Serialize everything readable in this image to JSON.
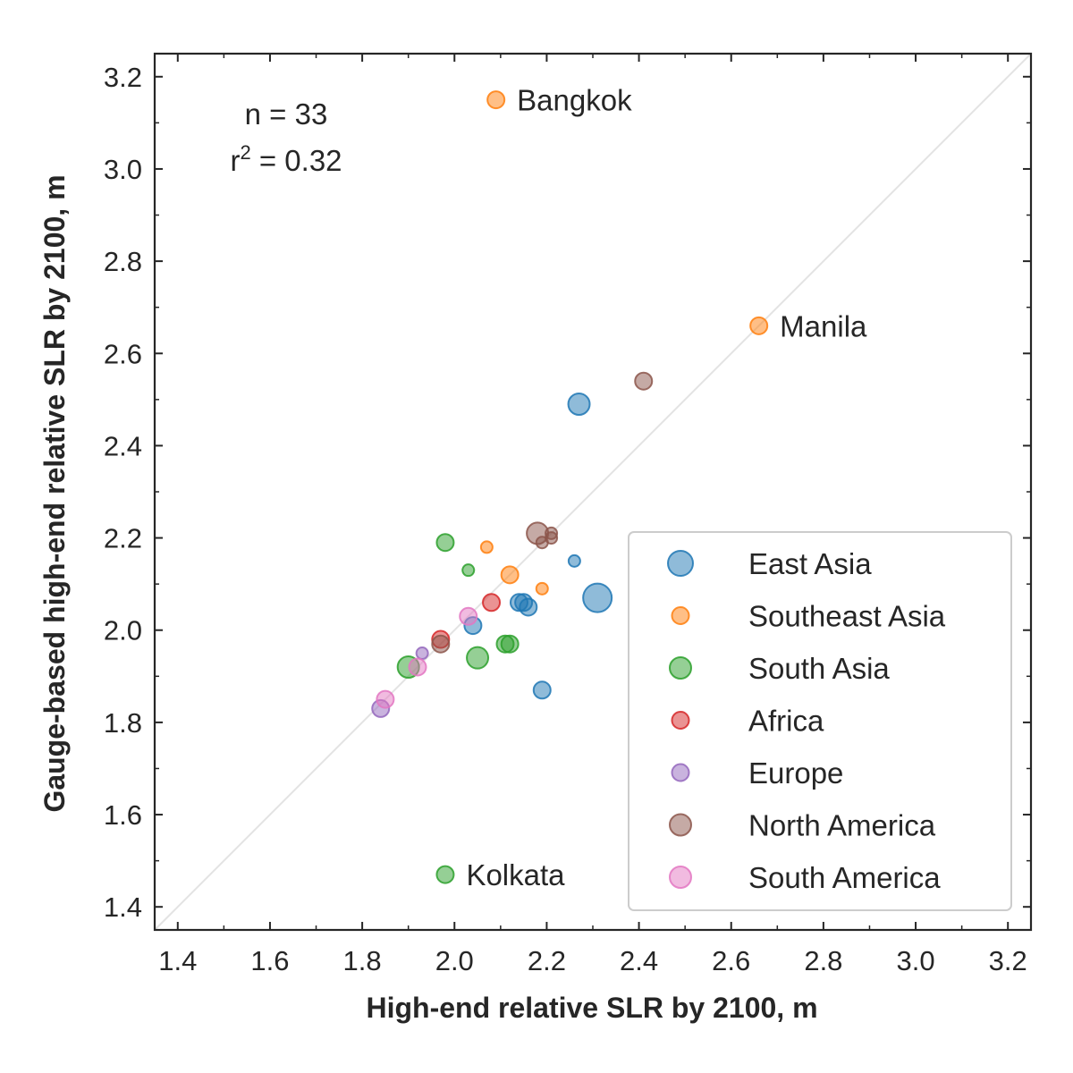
{
  "chart_data": {
    "type": "scatter",
    "xlabel": "High-end relative SLR by 2100, m",
    "ylabel": "Gauge-based high-end relative SLR by 2100, m",
    "xlim": [
      1.35,
      3.25
    ],
    "ylim": [
      1.35,
      3.25
    ],
    "xticks": [
      "1.4",
      "1.6",
      "1.8",
      "2.0",
      "2.2",
      "2.4",
      "2.6",
      "2.8",
      "3.0",
      "3.2"
    ],
    "yticks": [
      "1.4",
      "1.6",
      "1.8",
      "2.0",
      "2.2",
      "2.4",
      "2.6",
      "2.8",
      "3.0",
      "3.2"
    ],
    "reference_line": "y = x",
    "grid": false,
    "legend_position": "lower right",
    "stats": {
      "n": "n = 33",
      "r2_prefix": "r",
      "r2_sup": "2",
      "r2_value": " = 0.32"
    },
    "series": [
      {
        "name": "East Asia",
        "color": "#1f77b4",
        "points": [
          {
            "x": 2.27,
            "y": 2.49,
            "s": 2
          },
          {
            "x": 2.31,
            "y": 2.07,
            "s": 3
          },
          {
            "x": 2.26,
            "y": 2.15,
            "s": 0
          },
          {
            "x": 2.14,
            "y": 2.06,
            "s": 1
          },
          {
            "x": 2.15,
            "y": 2.06,
            "s": 1
          },
          {
            "x": 2.16,
            "y": 2.05,
            "s": 1
          },
          {
            "x": 2.04,
            "y": 2.01,
            "s": 1
          },
          {
            "x": 2.19,
            "y": 1.87,
            "s": 1
          }
        ]
      },
      {
        "name": "Southeast Asia",
        "color": "#ff7f0e",
        "points": [
          {
            "x": 2.09,
            "y": 3.15,
            "s": 1,
            "label": "Bangkok"
          },
          {
            "x": 2.66,
            "y": 2.66,
            "s": 1,
            "label": "Manila"
          },
          {
            "x": 2.07,
            "y": 2.18,
            "s": 0
          },
          {
            "x": 2.12,
            "y": 2.12,
            "s": 1
          },
          {
            "x": 2.19,
            "y": 2.09,
            "s": 0
          }
        ]
      },
      {
        "name": "South Asia",
        "color": "#2ca02c",
        "points": [
          {
            "x": 1.98,
            "y": 2.19,
            "s": 1
          },
          {
            "x": 2.03,
            "y": 2.13,
            "s": 0
          },
          {
            "x": 2.11,
            "y": 1.97,
            "s": 1
          },
          {
            "x": 2.12,
            "y": 1.97,
            "s": 1
          },
          {
            "x": 2.05,
            "y": 1.94,
            "s": 2
          },
          {
            "x": 1.9,
            "y": 1.92,
            "s": 2
          },
          {
            "x": 1.98,
            "y": 1.47,
            "s": 1,
            "label": "Kolkata"
          }
        ]
      },
      {
        "name": "Africa",
        "color": "#d62728",
        "points": [
          {
            "x": 2.08,
            "y": 2.06,
            "s": 1
          },
          {
            "x": 1.97,
            "y": 1.98,
            "s": 1
          }
        ]
      },
      {
        "name": "Europe",
        "color": "#9467bd",
        "points": [
          {
            "x": 1.93,
            "y": 1.95,
            "s": 0
          },
          {
            "x": 1.84,
            "y": 1.83,
            "s": 1
          }
        ]
      },
      {
        "name": "North America",
        "color": "#8c564b",
        "points": [
          {
            "x": 2.41,
            "y": 2.54,
            "s": 1
          },
          {
            "x": 2.18,
            "y": 2.21,
            "s": 2
          },
          {
            "x": 2.21,
            "y": 2.2,
            "s": 0
          },
          {
            "x": 2.21,
            "y": 2.21,
            "s": 0
          },
          {
            "x": 2.19,
            "y": 2.19,
            "s": 0
          },
          {
            "x": 1.97,
            "y": 1.97,
            "s": 1
          }
        ]
      },
      {
        "name": "South America",
        "color": "#e377c2",
        "points": [
          {
            "x": 2.03,
            "y": 2.03,
            "s": 1
          },
          {
            "x": 1.92,
            "y": 1.92,
            "s": 1
          },
          {
            "x": 1.85,
            "y": 1.85,
            "s": 1
          }
        ]
      }
    ]
  }
}
